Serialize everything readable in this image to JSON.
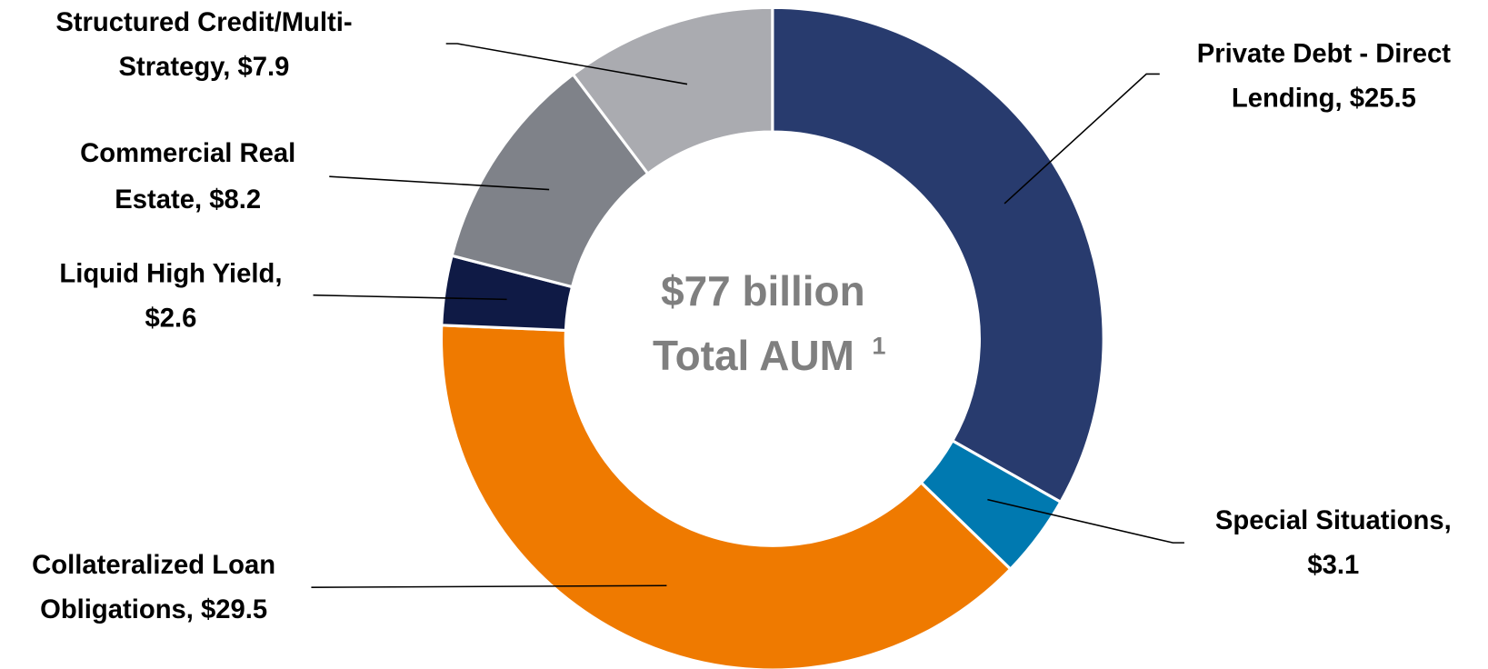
{
  "chart_data": {
    "type": "pie",
    "values": [
      25.5,
      3.1,
      29.5,
      2.6,
      8.2,
      7.9
    ],
    "value_labels": [
      [
        "Private Debt - Direct",
        "Lending, $25.5"
      ],
      [
        "Special Situations,",
        "$3.1"
      ],
      [
        "Collateralized Loan",
        "Obligations, $29.5"
      ],
      [
        "Liquid High Yield,",
        "$2.6"
      ],
      [
        "Commercial Real",
        "Estate, $8.2"
      ],
      [
        "Structured Credit/Multi-",
        "Strategy, $7.9"
      ]
    ],
    "colors": [
      "#283b6e",
      "#0079b0",
      "#ef7a00",
      "#0f1a45",
      "#7f8289",
      "#aaabb0"
    ],
    "center_text": [
      "$77 billion",
      "Total AUM"
    ],
    "center_superscript": "1"
  }
}
